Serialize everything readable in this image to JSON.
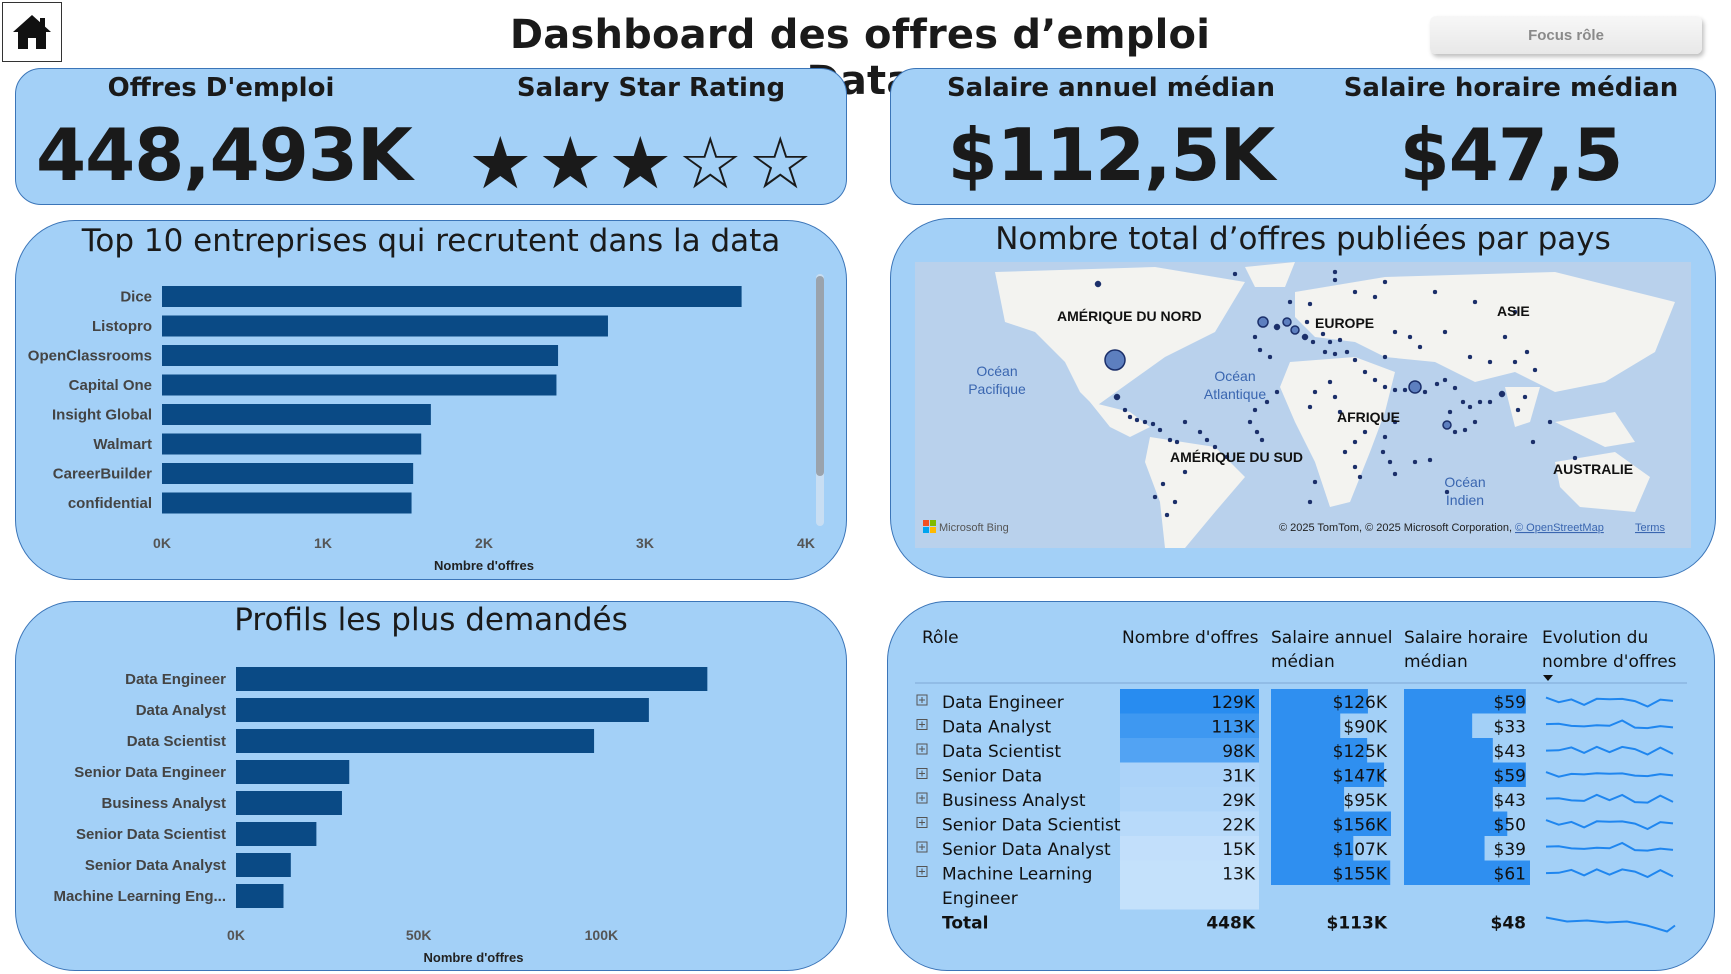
{
  "header": {
    "title": "Dashboard des offres d’emploi Data",
    "focus_button": "Focus rôle",
    "home_icon": "home-icon"
  },
  "kpis": {
    "offres_label": "Offres D'emploi",
    "offres_value": "448,493K",
    "rating_label": "Salary Star Rating",
    "rating_value": 3,
    "rating_max": 5,
    "star_filled": "★",
    "star_empty": "☆",
    "salaire_annuel_label": "Salaire annuel médian",
    "salaire_annuel_value": "$112,5K",
    "salaire_horaire_label": "Salaire horaire médian",
    "salaire_horaire_value": "$47,5"
  },
  "colors": {
    "panel_bg": "#a3d0f7",
    "panel_border": "#3b75b8",
    "bar": "#0a4a85",
    "dot": "#1b2f6a"
  },
  "map": {
    "title": "Nombre total d’offres publiées par pays",
    "labels": [
      "AMÉRIQUE DU NORD",
      "EUROPE",
      "ASIE",
      "AFRIQUE",
      "AMÉRIQUE DU SUD",
      "AUSTRALIE"
    ],
    "oceans": [
      "Océan Pacifique",
      "Océan Atlantique",
      "Océan Indien"
    ],
    "brand": "Microsoft Bing",
    "copyright": "© 2025 TomTom, © 2025 Microsoft Corporation,",
    "osm": "© OpenStreetMap",
    "terms": "Terms"
  },
  "chart_data": [
    {
      "type": "bar",
      "title": "Top 10 entreprises qui recrutent dans la data",
      "xlabel": "Nombre d'offres",
      "categories": [
        "Dice",
        "Listopro",
        "OpenClassrooms",
        "Capital One",
        "Insight Global",
        "Walmart",
        "CareerBuilder",
        "confidential"
      ],
      "values": [
        3600,
        2770,
        2460,
        2450,
        1670,
        1610,
        1560,
        1550
      ],
      "xlim": [
        0,
        4000
      ],
      "ticks": [
        0,
        1000,
        2000,
        3000,
        4000
      ],
      "tick_labels": [
        "0K",
        "1K",
        "2K",
        "3K",
        "4K"
      ]
    },
    {
      "type": "bar",
      "title": "Profils les plus demandés",
      "xlabel": "Nombre d'offres",
      "categories": [
        "Data Engineer",
        "Data Analyst",
        "Data Scientist",
        "Senior Data Engineer",
        "Business Analyst",
        "Senior Data Scientist",
        "Senior Data Analyst",
        "Machine Learning Eng..."
      ],
      "values": [
        129000,
        113000,
        98000,
        31000,
        29000,
        22000,
        15000,
        13000
      ],
      "xlim": [
        0,
        130000
      ],
      "ticks": [
        0,
        50000,
        100000
      ],
      "tick_labels": [
        "0K",
        "50K",
        "100K"
      ]
    },
    {
      "type": "table",
      "columns": [
        "Rôle",
        "Nombre d'offres",
        "Salaire annuel médian",
        "Salaire horaire médian",
        "Evolution du nombre d'offres"
      ],
      "rows": [
        {
          "role": "Data Engineer",
          "offres": 129,
          "offres_label": "129K",
          "annuel": 126,
          "annuel_label": "$126K",
          "horaire": 59,
          "horaire_label": "$59"
        },
        {
          "role": "Data Analyst",
          "offres": 113,
          "offres_label": "113K",
          "annuel": 90,
          "annuel_label": "$90K",
          "horaire": 33,
          "horaire_label": "$33"
        },
        {
          "role": "Data Scientist",
          "offres": 98,
          "offres_label": "98K",
          "annuel": 125,
          "annuel_label": "$125K",
          "horaire": 43,
          "horaire_label": "$43"
        },
        {
          "role": "Senior Data",
          "offres": 31,
          "offres_label": "31K",
          "annuel": 147,
          "annuel_label": "$147K",
          "horaire": 59,
          "horaire_label": "$59"
        },
        {
          "role": "Business Analyst",
          "offres": 29,
          "offres_label": "29K",
          "annuel": 95,
          "annuel_label": "$95K",
          "horaire": 43,
          "horaire_label": "$43"
        },
        {
          "role": "Senior Data Scientist",
          "offres": 22,
          "offres_label": "22K",
          "annuel": 156,
          "annuel_label": "$156K",
          "horaire": 50,
          "horaire_label": "$50"
        },
        {
          "role": "Senior Data Analyst",
          "offres": 15,
          "offres_label": "15K",
          "annuel": 107,
          "annuel_label": "$107K",
          "horaire": 39,
          "horaire_label": "$39"
        },
        {
          "role": "Machine Learning Engineer",
          "offres": 13,
          "offres_label": "13K",
          "annuel": 155,
          "annuel_label": "$155K",
          "horaire": 61,
          "horaire_label": "$61"
        }
      ],
      "total": {
        "label": "Total",
        "offres_label": "448K",
        "annuel_label": "$113K",
        "horaire_label": "$48"
      }
    }
  ]
}
